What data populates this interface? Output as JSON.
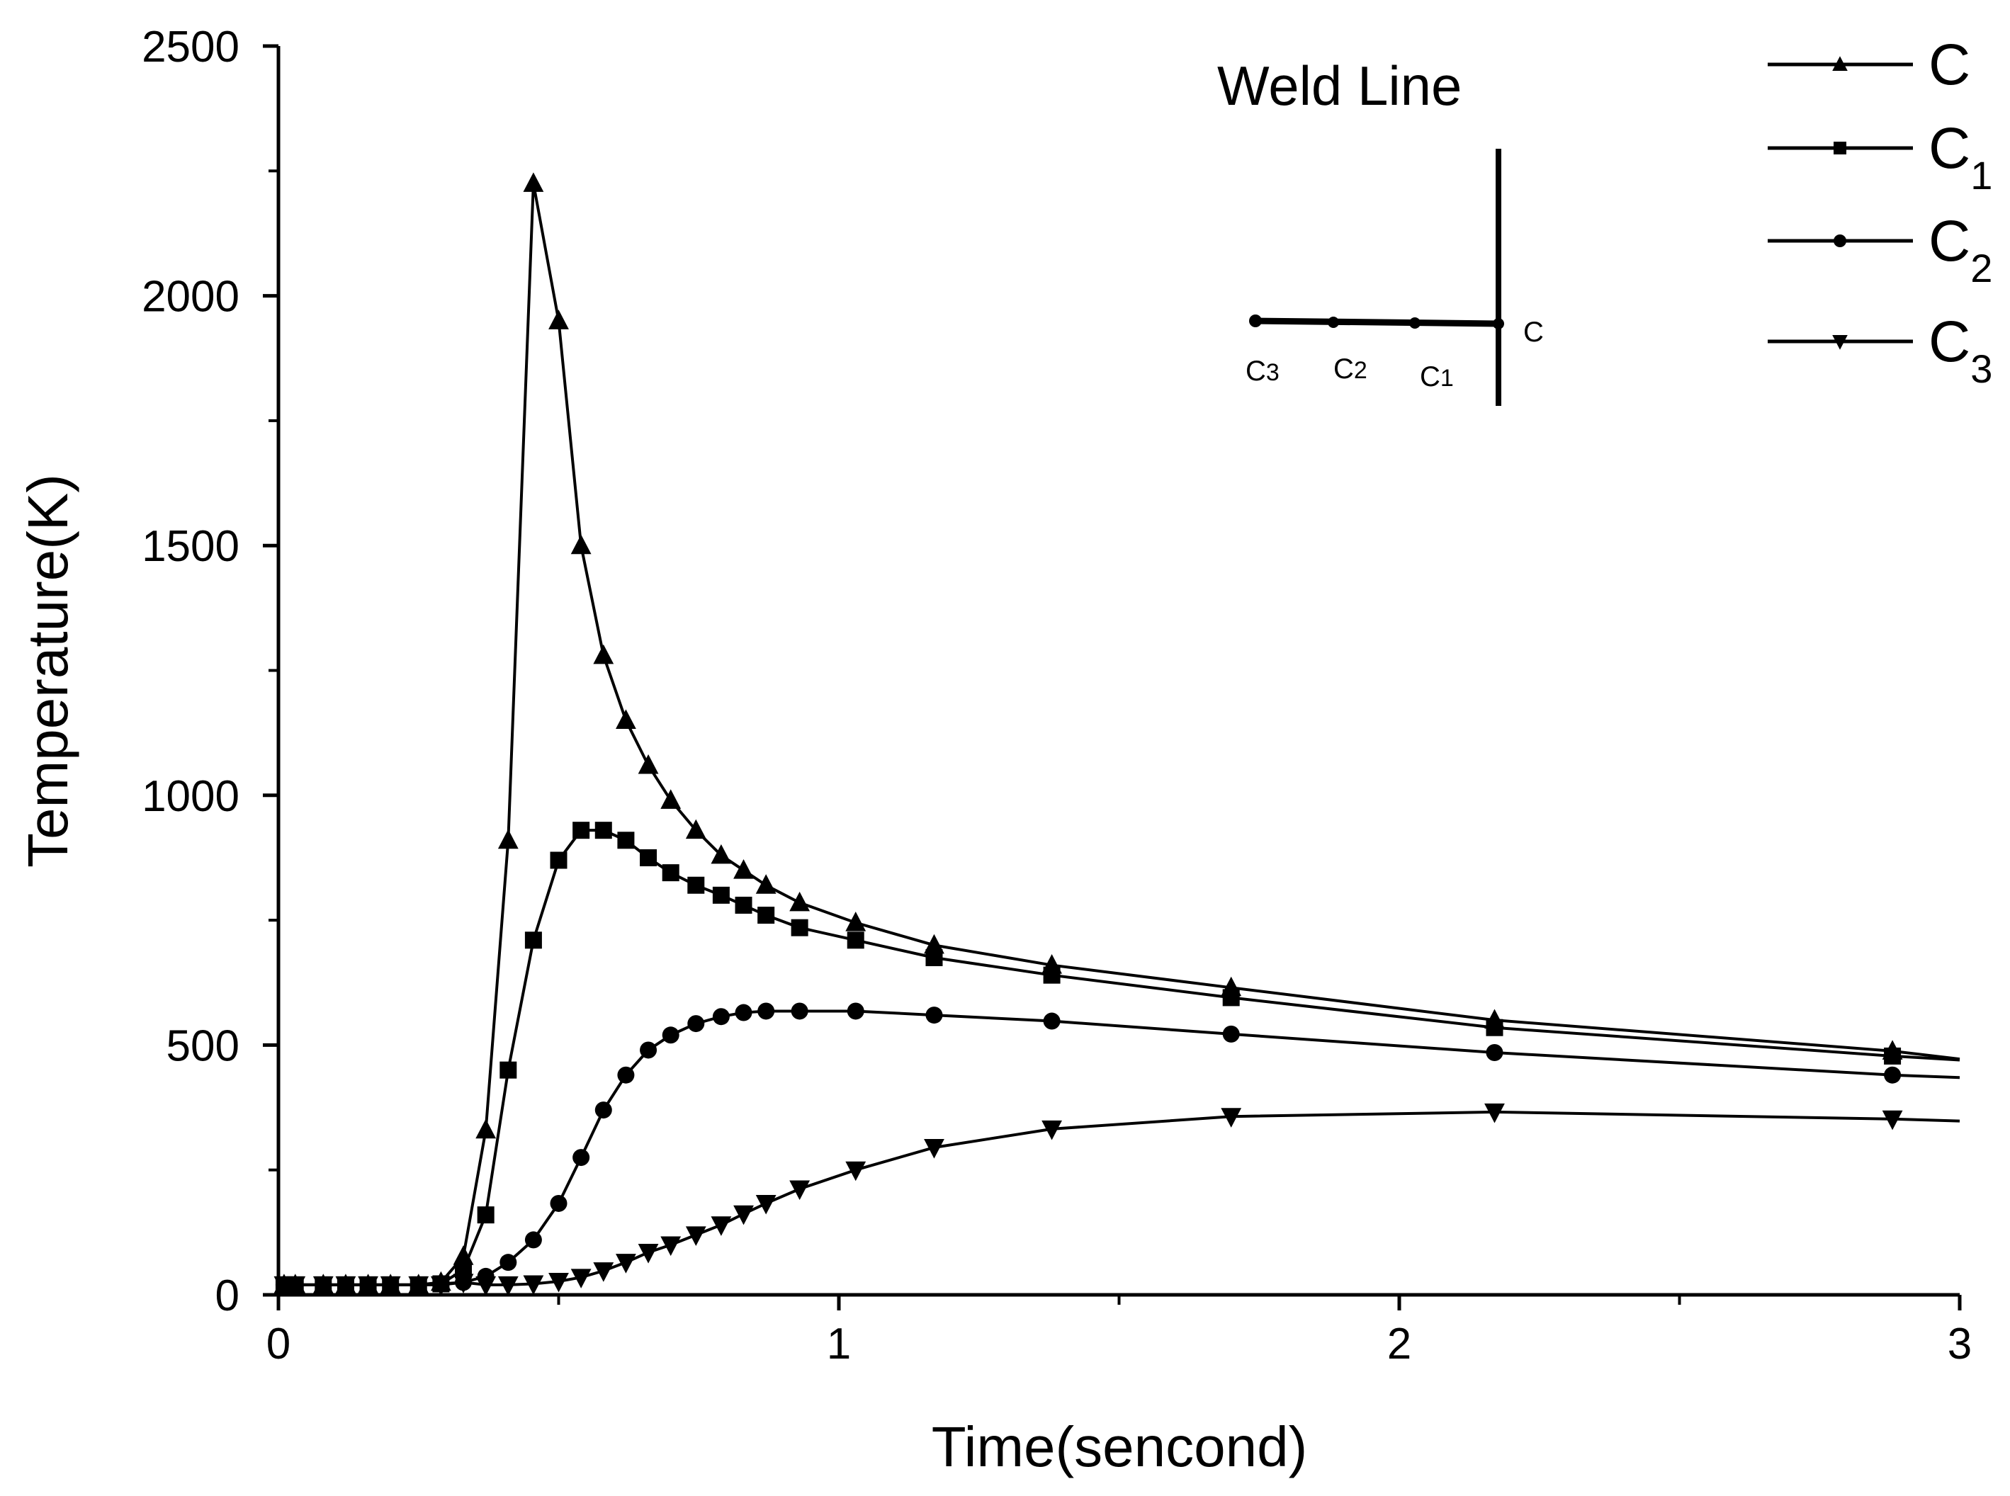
{
  "chart_data": {
    "type": "line",
    "title": "",
    "xlabel": "Time(sencond)",
    "ylabel": "Temperature(K)",
    "xlim": [
      0,
      3
    ],
    "ylim": [
      0,
      2500
    ],
    "x_ticks": [
      0,
      1,
      2,
      3
    ],
    "x_tick_labels": [
      "0",
      "1",
      "2",
      "3"
    ],
    "x_minor_step": 0.5,
    "y_ticks": [
      0,
      500,
      1000,
      1500,
      2000,
      2500
    ],
    "y_tick_labels": [
      "0",
      "500",
      "1000",
      "1500",
      "2000",
      "2500"
    ],
    "y_minor_step": 250,
    "grid": false,
    "legend_position": "top-right",
    "x": [
      0.01,
      0.03,
      0.08,
      0.12,
      0.16,
      0.2,
      0.25,
      0.29,
      0.33,
      0.37,
      0.41,
      0.455,
      0.5,
      0.54,
      0.58,
      0.62,
      0.66,
      0.7,
      0.745,
      0.79,
      0.83,
      0.87,
      0.93,
      1.03,
      1.17,
      1.38,
      1.7,
      2.17,
      2.88
    ],
    "series": [
      {
        "name": "C",
        "sub": "",
        "marker": "triangle-up",
        "values": [
          20,
          20,
          20,
          20,
          20,
          20,
          20,
          25,
          77,
          330,
          910,
          2225,
          1950,
          1500,
          1280,
          1150,
          1060,
          990,
          930,
          880,
          850,
          820,
          785,
          745,
          700,
          660,
          615,
          550,
          488
        ],
        "end": 472
      },
      {
        "name": "C",
        "sub": "1",
        "marker": "square",
        "values": [
          20,
          20,
          20,
          20,
          20,
          20,
          20,
          22,
          50,
          160,
          450,
          710,
          870,
          930,
          930,
          910,
          875,
          845,
          820,
          800,
          780,
          760,
          735,
          710,
          675,
          640,
          595,
          535,
          478
        ],
        "end": 470
      },
      {
        "name": "C",
        "sub": "2",
        "marker": "circle",
        "values": [
          20,
          20,
          20,
          20,
          20,
          20,
          20,
          22,
          25,
          37,
          65,
          110,
          183,
          275,
          370,
          440,
          490,
          520,
          543,
          557,
          565,
          568,
          568,
          568,
          560,
          548,
          522,
          485,
          440
        ],
        "end": 435
      },
      {
        "name": "C",
        "sub": "3",
        "marker": "triangle-down",
        "values": [
          20,
          20,
          20,
          20,
          20,
          20,
          20,
          20,
          25,
          20,
          20,
          22,
          27,
          35,
          48,
          65,
          85,
          100,
          120,
          140,
          162,
          183,
          212,
          250,
          295,
          332,
          357,
          366,
          352
        ],
        "end": 348
      }
    ],
    "annotations": {
      "inset_title": "Weld Line",
      "inset_labels": [
        {
          "main": "C",
          "sub": "3"
        },
        {
          "main": "C",
          "sub": "2"
        },
        {
          "main": "C",
          "sub": "1"
        },
        {
          "main": "C",
          "sub": ""
        }
      ]
    }
  },
  "colors": {
    "line": "#000000",
    "background": "#ffffff"
  }
}
